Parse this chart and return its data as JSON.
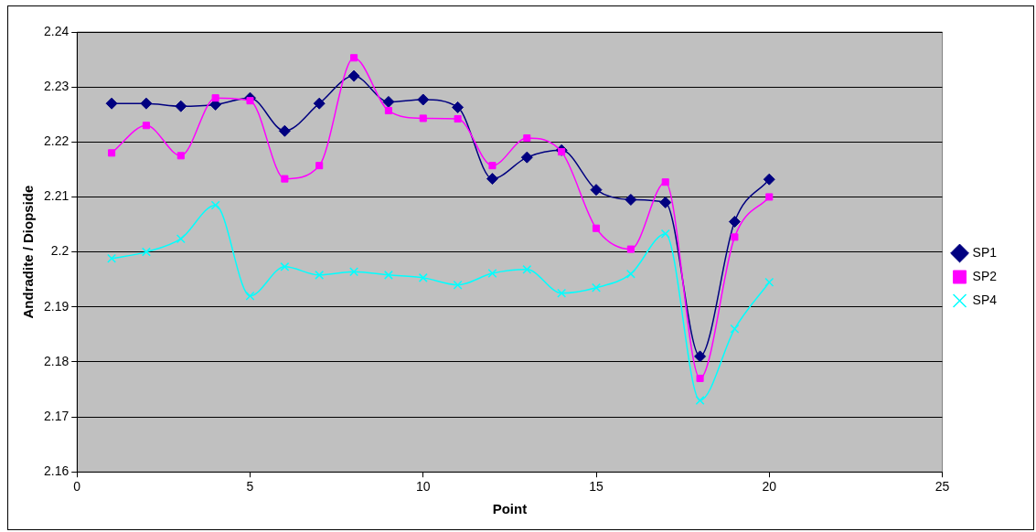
{
  "chart_data": {
    "type": "line",
    "xlabel": "Point",
    "ylabel": "Andradite / Diopside",
    "x": [
      1,
      2,
      3,
      4,
      5,
      6,
      7,
      8,
      9,
      10,
      11,
      12,
      13,
      14,
      15,
      16,
      17,
      18,
      19,
      20
    ],
    "xlim": [
      0,
      25
    ],
    "xticks": [
      0,
      5,
      10,
      15,
      20,
      25
    ],
    "ylim": [
      2.16,
      2.24
    ],
    "yticks": [
      2.16,
      2.17,
      2.18,
      2.19,
      2.2,
      2.21,
      2.22,
      2.23,
      2.24
    ],
    "grid": "y",
    "legend": "right",
    "series": [
      {
        "name": "SP1",
        "color": "#000080",
        "marker": "diamond",
        "values": [
          2.227,
          2.227,
          2.2265,
          2.2268,
          2.228,
          2.222,
          2.227,
          2.232,
          2.2273,
          2.2277,
          2.2263,
          2.2133,
          2.2172,
          2.2185,
          2.2113,
          2.2095,
          2.209,
          2.181,
          2.2055,
          2.2132
        ]
      },
      {
        "name": "SP2",
        "color": "#ff00ff",
        "marker": "square",
        "values": [
          2.218,
          2.223,
          2.2175,
          2.228,
          2.2275,
          2.2133,
          2.2157,
          2.2353,
          2.2257,
          2.2243,
          2.2242,
          2.2157,
          2.2207,
          2.2182,
          2.2043,
          2.2005,
          2.2127,
          2.177,
          2.2027,
          2.21
        ]
      },
      {
        "name": "SP4",
        "color": "#00ffff",
        "marker": "cross",
        "values": [
          2.1988,
          2.2,
          2.2024,
          2.2085,
          2.192,
          2.1973,
          2.1958,
          2.1964,
          2.1958,
          2.1953,
          2.194,
          2.1961,
          2.1968,
          2.1925,
          2.1935,
          2.196,
          2.2033,
          2.173,
          2.186,
          2.1945
        ]
      }
    ]
  }
}
